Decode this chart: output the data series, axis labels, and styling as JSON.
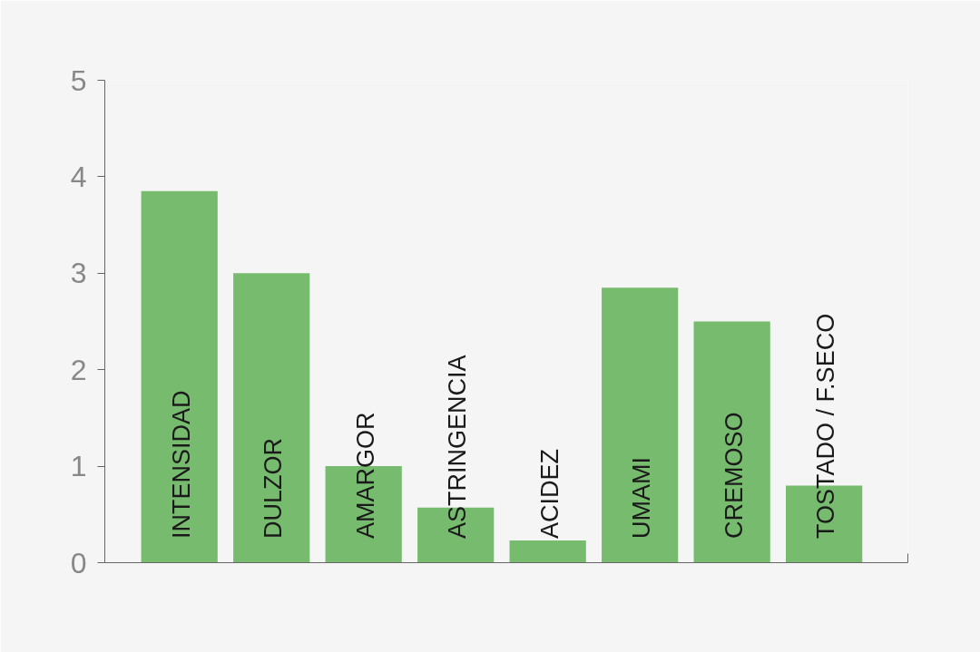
{
  "chart_data": {
    "type": "bar",
    "categories": [
      "INTENSIDAD",
      "DULZOR",
      "AMARGOR",
      "ASTRINGENCIA",
      "ACIDEZ",
      "UMAMI",
      "CREMOSO",
      "TOSTADO / F.SECO"
    ],
    "values": [
      3.85,
      3.0,
      1.0,
      0.57,
      0.23,
      2.85,
      2.5,
      0.8
    ],
    "color": "#77bc6e",
    "ylim": [
      0,
      5
    ],
    "yticks": [
      0,
      1,
      2,
      3,
      4,
      5
    ],
    "grid": false
  }
}
